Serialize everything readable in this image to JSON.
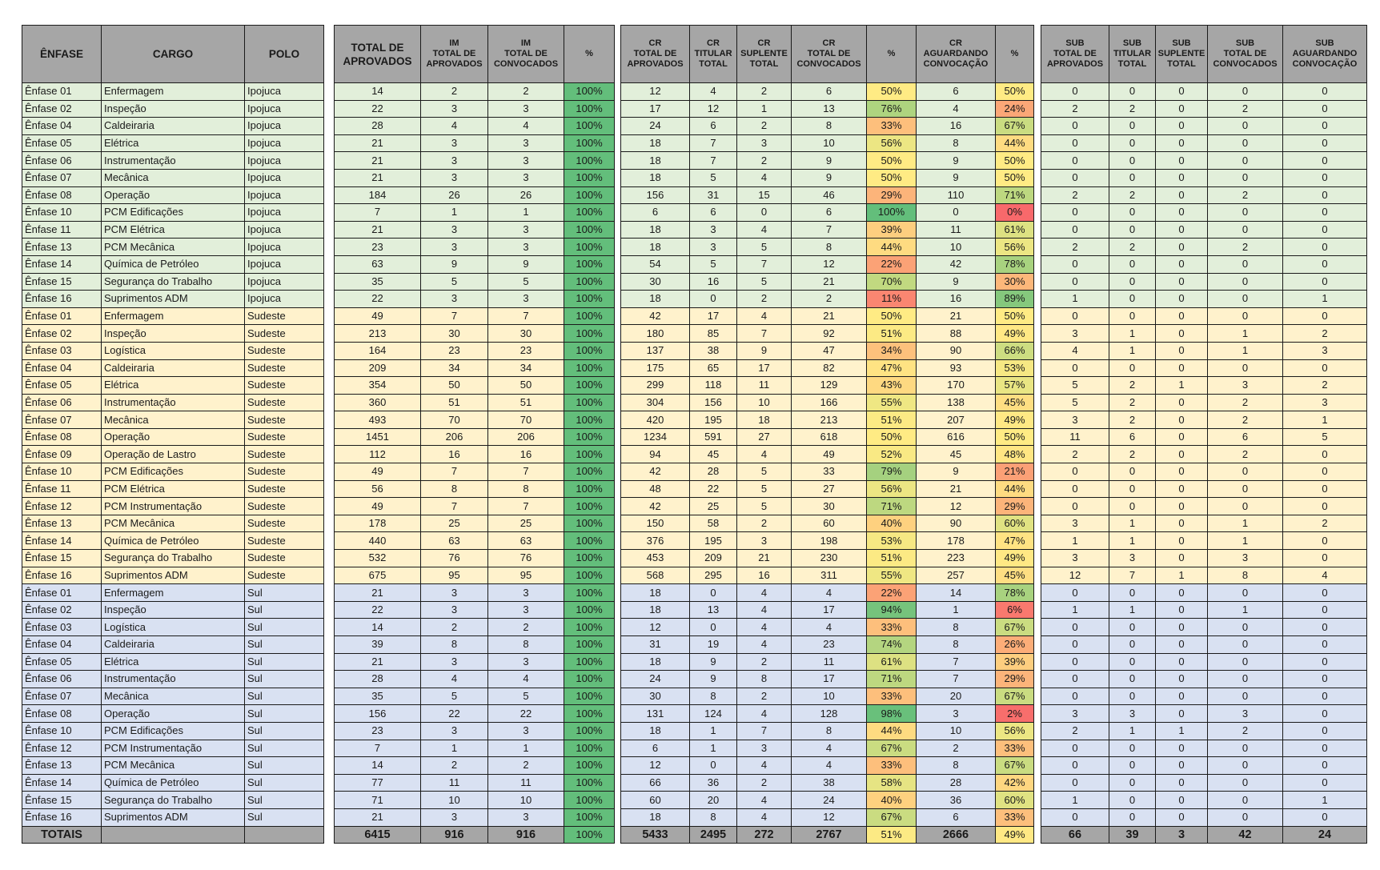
{
  "headers": {
    "info": [
      "ÊNFASE",
      "CARGO",
      "POLO"
    ],
    "im": [
      "TOTAL DE APROVADOS",
      "IM TOTAL DE APROVADOS",
      "IM TOTAL DE CONVOCADOS",
      "%"
    ],
    "cr": [
      "CR TOTAL DE APROVADOS",
      "CR TITULAR TOTAL",
      "CR SUPLENTE TOTAL",
      "CR TOTAL DE CONVOCADOS",
      "%",
      "CR AGUARDANDO CONVOCAÇÃO",
      "%"
    ],
    "sub": [
      "SUB TOTAL DE APROVADOS",
      "SUB TITULAR TOTAL",
      "SUB SUPLENTE TOTAL",
      "SUB TOTAL DE CONVOCADOS",
      "SUB AGUARDANDO CONVOCAÇÃO"
    ]
  },
  "rows": [
    [
      "Ênfase 01",
      "Enfermagem",
      "Ipojuca",
      "14",
      "2",
      "2",
      "100%",
      "12",
      "4",
      "2",
      "6",
      "50%",
      "6",
      "50%",
      "0",
      "0",
      "0",
      "0",
      "0"
    ],
    [
      "Ênfase 02",
      "Inspeção",
      "Ipojuca",
      "22",
      "3",
      "3",
      "100%",
      "17",
      "12",
      "1",
      "13",
      "76%",
      "4",
      "24%",
      "2",
      "2",
      "0",
      "2",
      "0"
    ],
    [
      "Ênfase 04",
      "Caldeiraria",
      "Ipojuca",
      "28",
      "4",
      "4",
      "100%",
      "24",
      "6",
      "2",
      "8",
      "33%",
      "16",
      "67%",
      "0",
      "0",
      "0",
      "0",
      "0"
    ],
    [
      "Ênfase 05",
      "Elétrica",
      "Ipojuca",
      "21",
      "3",
      "3",
      "100%",
      "18",
      "7",
      "3",
      "10",
      "56%",
      "8",
      "44%",
      "0",
      "0",
      "0",
      "0",
      "0"
    ],
    [
      "Ênfase 06",
      "Instrumentação",
      "Ipojuca",
      "21",
      "3",
      "3",
      "100%",
      "18",
      "7",
      "2",
      "9",
      "50%",
      "9",
      "50%",
      "0",
      "0",
      "0",
      "0",
      "0"
    ],
    [
      "Ênfase 07",
      "Mecânica",
      "Ipojuca",
      "21",
      "3",
      "3",
      "100%",
      "18",
      "5",
      "4",
      "9",
      "50%",
      "9",
      "50%",
      "0",
      "0",
      "0",
      "0",
      "0"
    ],
    [
      "Ênfase 08",
      "Operação",
      "Ipojuca",
      "184",
      "26",
      "26",
      "100%",
      "156",
      "31",
      "15",
      "46",
      "29%",
      "110",
      "71%",
      "2",
      "2",
      "0",
      "2",
      "0"
    ],
    [
      "Ênfase 10",
      "PCM Edificações",
      "Ipojuca",
      "7",
      "1",
      "1",
      "100%",
      "6",
      "6",
      "0",
      "6",
      "100%",
      "0",
      "0%",
      "0",
      "0",
      "0",
      "0",
      "0"
    ],
    [
      "Ênfase 11",
      "PCM Elétrica",
      "Ipojuca",
      "21",
      "3",
      "3",
      "100%",
      "18",
      "3",
      "4",
      "7",
      "39%",
      "11",
      "61%",
      "0",
      "0",
      "0",
      "0",
      "0"
    ],
    [
      "Ênfase 13",
      "PCM Mecânica",
      "Ipojuca",
      "23",
      "3",
      "3",
      "100%",
      "18",
      "3",
      "5",
      "8",
      "44%",
      "10",
      "56%",
      "2",
      "2",
      "0",
      "2",
      "0"
    ],
    [
      "Ênfase 14",
      "Química de Petróleo",
      "Ipojuca",
      "63",
      "9",
      "9",
      "100%",
      "54",
      "5",
      "7",
      "12",
      "22%",
      "42",
      "78%",
      "0",
      "0",
      "0",
      "0",
      "0"
    ],
    [
      "Ênfase 15",
      "Segurança do Trabalho",
      "Ipojuca",
      "35",
      "5",
      "5",
      "100%",
      "30",
      "16",
      "5",
      "21",
      "70%",
      "9",
      "30%",
      "0",
      "0",
      "0",
      "0",
      "0"
    ],
    [
      "Ênfase 16",
      "Suprimentos ADM",
      "Ipojuca",
      "22",
      "3",
      "3",
      "100%",
      "18",
      "0",
      "2",
      "2",
      "11%",
      "16",
      "89%",
      "1",
      "0",
      "0",
      "0",
      "1"
    ],
    [
      "Ênfase 01",
      "Enfermagem",
      "Sudeste",
      "49",
      "7",
      "7",
      "100%",
      "42",
      "17",
      "4",
      "21",
      "50%",
      "21",
      "50%",
      "0",
      "0",
      "0",
      "0",
      "0"
    ],
    [
      "Ênfase 02",
      "Inspeção",
      "Sudeste",
      "213",
      "30",
      "30",
      "100%",
      "180",
      "85",
      "7",
      "92",
      "51%",
      "88",
      "49%",
      "3",
      "1",
      "0",
      "1",
      "2"
    ],
    [
      "Ênfase 03",
      "Logística",
      "Sudeste",
      "164",
      "23",
      "23",
      "100%",
      "137",
      "38",
      "9",
      "47",
      "34%",
      "90",
      "66%",
      "4",
      "1",
      "0",
      "1",
      "3"
    ],
    [
      "Ênfase 04",
      "Caldeiraria",
      "Sudeste",
      "209",
      "34",
      "34",
      "100%",
      "175",
      "65",
      "17",
      "82",
      "47%",
      "93",
      "53%",
      "0",
      "0",
      "0",
      "0",
      "0"
    ],
    [
      "Ênfase 05",
      "Elétrica",
      "Sudeste",
      "354",
      "50",
      "50",
      "100%",
      "299",
      "118",
      "11",
      "129",
      "43%",
      "170",
      "57%",
      "5",
      "2",
      "1",
      "3",
      "2"
    ],
    [
      "Ênfase 06",
      "Instrumentação",
      "Sudeste",
      "360",
      "51",
      "51",
      "100%",
      "304",
      "156",
      "10",
      "166",
      "55%",
      "138",
      "45%",
      "5",
      "2",
      "0",
      "2",
      "3"
    ],
    [
      "Ênfase 07",
      "Mecânica",
      "Sudeste",
      "493",
      "70",
      "70",
      "100%",
      "420",
      "195",
      "18",
      "213",
      "51%",
      "207",
      "49%",
      "3",
      "2",
      "0",
      "2",
      "1"
    ],
    [
      "Ênfase 08",
      "Operação",
      "Sudeste",
      "1451",
      "206",
      "206",
      "100%",
      "1234",
      "591",
      "27",
      "618",
      "50%",
      "616",
      "50%",
      "11",
      "6",
      "0",
      "6",
      "5"
    ],
    [
      "Ênfase 09",
      "Operação de Lastro",
      "Sudeste",
      "112",
      "16",
      "16",
      "100%",
      "94",
      "45",
      "4",
      "49",
      "52%",
      "45",
      "48%",
      "2",
      "2",
      "0",
      "2",
      "0"
    ],
    [
      "Ênfase 10",
      "PCM Edificações",
      "Sudeste",
      "49",
      "7",
      "7",
      "100%",
      "42",
      "28",
      "5",
      "33",
      "79%",
      "9",
      "21%",
      "0",
      "0",
      "0",
      "0",
      "0"
    ],
    [
      "Ênfase 11",
      "PCM Elétrica",
      "Sudeste",
      "56",
      "8",
      "8",
      "100%",
      "48",
      "22",
      "5",
      "27",
      "56%",
      "21",
      "44%",
      "0",
      "0",
      "0",
      "0",
      "0"
    ],
    [
      "Ênfase 12",
      "PCM  Instrumentação",
      "Sudeste",
      "49",
      "7",
      "7",
      "100%",
      "42",
      "25",
      "5",
      "30",
      "71%",
      "12",
      "29%",
      "0",
      "0",
      "0",
      "0",
      "0"
    ],
    [
      "Ênfase 13",
      "PCM Mecânica",
      "Sudeste",
      "178",
      "25",
      "25",
      "100%",
      "150",
      "58",
      "2",
      "60",
      "40%",
      "90",
      "60%",
      "3",
      "1",
      "0",
      "1",
      "2"
    ],
    [
      "Ênfase 14",
      "Química de Petróleo",
      "Sudeste",
      "440",
      "63",
      "63",
      "100%",
      "376",
      "195",
      "3",
      "198",
      "53%",
      "178",
      "47%",
      "1",
      "1",
      "0",
      "1",
      "0"
    ],
    [
      "Ênfase 15",
      "Segurança do Trabalho",
      "Sudeste",
      "532",
      "76",
      "76",
      "100%",
      "453",
      "209",
      "21",
      "230",
      "51%",
      "223",
      "49%",
      "3",
      "3",
      "0",
      "3",
      "0"
    ],
    [
      "Ênfase 16",
      "Suprimentos ADM",
      "Sudeste",
      "675",
      "95",
      "95",
      "100%",
      "568",
      "295",
      "16",
      "311",
      "55%",
      "257",
      "45%",
      "12",
      "7",
      "1",
      "8",
      "4"
    ],
    [
      "Ênfase 01",
      "Enfermagem",
      "Sul",
      "21",
      "3",
      "3",
      "100%",
      "18",
      "0",
      "4",
      "4",
      "22%",
      "14",
      "78%",
      "0",
      "0",
      "0",
      "0",
      "0"
    ],
    [
      "Ênfase 02",
      "Inspeção",
      "Sul",
      "22",
      "3",
      "3",
      "100%",
      "18",
      "13",
      "4",
      "17",
      "94%",
      "1",
      "6%",
      "1",
      "1",
      "0",
      "1",
      "0"
    ],
    [
      "Ênfase 03",
      "Logística",
      "Sul",
      "14",
      "2",
      "2",
      "100%",
      "12",
      "0",
      "4",
      "4",
      "33%",
      "8",
      "67%",
      "0",
      "0",
      "0",
      "0",
      "0"
    ],
    [
      "Ênfase 04",
      "Caldeiraria",
      "Sul",
      "39",
      "8",
      "8",
      "100%",
      "31",
      "19",
      "4",
      "23",
      "74%",
      "8",
      "26%",
      "0",
      "0",
      "0",
      "0",
      "0"
    ],
    [
      "Ênfase 05",
      "Elétrica",
      "Sul",
      "21",
      "3",
      "3",
      "100%",
      "18",
      "9",
      "2",
      "11",
      "61%",
      "7",
      "39%",
      "0",
      "0",
      "0",
      "0",
      "0"
    ],
    [
      "Ênfase 06",
      "Instrumentação",
      "Sul",
      "28",
      "4",
      "4",
      "100%",
      "24",
      "9",
      "8",
      "17",
      "71%",
      "7",
      "29%",
      "0",
      "0",
      "0",
      "0",
      "0"
    ],
    [
      "Ênfase 07",
      "Mecânica",
      "Sul",
      "35",
      "5",
      "5",
      "100%",
      "30",
      "8",
      "2",
      "10",
      "33%",
      "20",
      "67%",
      "0",
      "0",
      "0",
      "0",
      "0"
    ],
    [
      "Ênfase 08",
      "Operação",
      "Sul",
      "156",
      "22",
      "22",
      "100%",
      "131",
      "124",
      "4",
      "128",
      "98%",
      "3",
      "2%",
      "3",
      "3",
      "0",
      "3",
      "0"
    ],
    [
      "Ênfase 10",
      "PCM Edificações",
      "Sul",
      "23",
      "3",
      "3",
      "100%",
      "18",
      "1",
      "7",
      "8",
      "44%",
      "10",
      "56%",
      "2",
      "1",
      "1",
      "2",
      "0"
    ],
    [
      "Ênfase 12",
      "PCM  Instrumentação",
      "Sul",
      "7",
      "1",
      "1",
      "100%",
      "6",
      "1",
      "3",
      "4",
      "67%",
      "2",
      "33%",
      "0",
      "0",
      "0",
      "0",
      "0"
    ],
    [
      "Ênfase 13",
      "PCM Mecânica",
      "Sul",
      "14",
      "2",
      "2",
      "100%",
      "12",
      "0",
      "4",
      "4",
      "33%",
      "8",
      "67%",
      "0",
      "0",
      "0",
      "0",
      "0"
    ],
    [
      "Ênfase 14",
      "Química de Petróleo",
      "Sul",
      "77",
      "11",
      "11",
      "100%",
      "66",
      "36",
      "2",
      "38",
      "58%",
      "28",
      "42%",
      "0",
      "0",
      "0",
      "0",
      "0"
    ],
    [
      "Ênfase 15",
      "Segurança do Trabalho",
      "Sul",
      "71",
      "10",
      "10",
      "100%",
      "60",
      "20",
      "4",
      "24",
      "40%",
      "36",
      "60%",
      "1",
      "0",
      "0",
      "0",
      "1"
    ],
    [
      "Ênfase 16",
      "Suprimentos ADM",
      "Sul",
      "21",
      "3",
      "3",
      "100%",
      "18",
      "8",
      "4",
      "12",
      "67%",
      "6",
      "33%",
      "0",
      "0",
      "0",
      "0",
      "0"
    ]
  ],
  "totals": [
    "TOTAIS",
    "",
    "",
    "6415",
    "916",
    "916",
    "100%",
    "5433",
    "2495",
    "272",
    "2767",
    "51%",
    "2666",
    "49%",
    "66",
    "39",
    "3",
    "42",
    "24"
  ]
}
